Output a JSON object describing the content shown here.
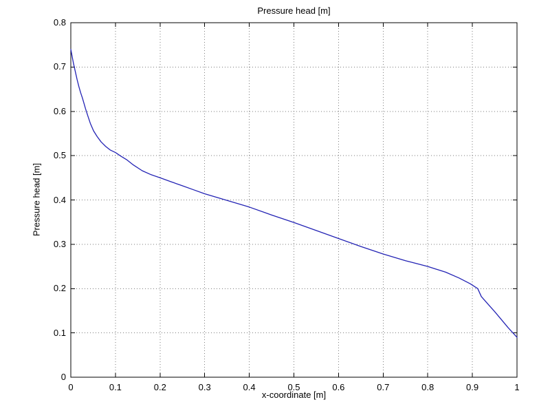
{
  "figure": {
    "background": "#ffffff",
    "frame_color": "#000000",
    "grid_color": "#7a7a7a"
  },
  "chart_data": {
    "type": "line",
    "title": "Pressure head [m]",
    "xlabel": "x-coordinate [m]",
    "ylabel": "Pressure head [m]",
    "xlim": [
      0,
      1
    ],
    "ylim": [
      0,
      0.8
    ],
    "xticks": [
      0,
      0.1,
      0.2,
      0.3,
      0.4,
      0.5,
      0.6,
      0.7,
      0.8,
      0.9,
      1
    ],
    "xtick_labels": [
      "0",
      "0.1",
      "0.2",
      "0.3",
      "0.4",
      "0.5",
      "0.6",
      "0.7",
      "0.8",
      "0.9",
      "1"
    ],
    "yticks": [
      0,
      0.1,
      0.2,
      0.3,
      0.4,
      0.5,
      0.6,
      0.7,
      0.8
    ],
    "ytick_labels": [
      "0",
      "0.1",
      "0.2",
      "0.3",
      "0.4",
      "0.5",
      "0.6",
      "0.7",
      "0.8"
    ],
    "grid": true,
    "grid_style": "dotted",
    "legend": "none",
    "line_color": "#2222b4",
    "series": [
      {
        "name": "Pressure head",
        "points": [
          [
            0.0,
            0.74
          ],
          [
            0.003,
            0.724
          ],
          [
            0.006,
            0.708
          ],
          [
            0.01,
            0.69
          ],
          [
            0.014,
            0.672
          ],
          [
            0.018,
            0.656
          ],
          [
            0.022,
            0.642
          ],
          [
            0.026,
            0.63
          ],
          [
            0.029,
            0.62
          ],
          [
            0.033,
            0.606
          ],
          [
            0.038,
            0.59
          ],
          [
            0.044,
            0.572
          ],
          [
            0.051,
            0.556
          ],
          [
            0.059,
            0.543
          ],
          [
            0.068,
            0.531
          ],
          [
            0.078,
            0.521
          ],
          [
            0.088,
            0.513
          ],
          [
            0.1,
            0.507
          ],
          [
            0.112,
            0.499
          ],
          [
            0.125,
            0.491
          ],
          [
            0.14,
            0.479
          ],
          [
            0.16,
            0.466
          ],
          [
            0.18,
            0.457
          ],
          [
            0.2,
            0.45
          ],
          [
            0.225,
            0.441
          ],
          [
            0.25,
            0.432
          ],
          [
            0.275,
            0.423
          ],
          [
            0.3,
            0.414
          ],
          [
            0.35,
            0.399
          ],
          [
            0.4,
            0.384
          ],
          [
            0.45,
            0.366
          ],
          [
            0.5,
            0.349
          ],
          [
            0.55,
            0.331
          ],
          [
            0.6,
            0.313
          ],
          [
            0.65,
            0.295
          ],
          [
            0.7,
            0.278
          ],
          [
            0.75,
            0.263
          ],
          [
            0.8,
            0.25
          ],
          [
            0.84,
            0.237
          ],
          [
            0.87,
            0.224
          ],
          [
            0.895,
            0.211
          ],
          [
            0.912,
            0.2
          ],
          [
            0.92,
            0.182
          ],
          [
            0.935,
            0.165
          ],
          [
            0.95,
            0.148
          ],
          [
            0.965,
            0.13
          ],
          [
            0.98,
            0.112
          ],
          [
            1.0,
            0.09
          ]
        ]
      }
    ]
  }
}
